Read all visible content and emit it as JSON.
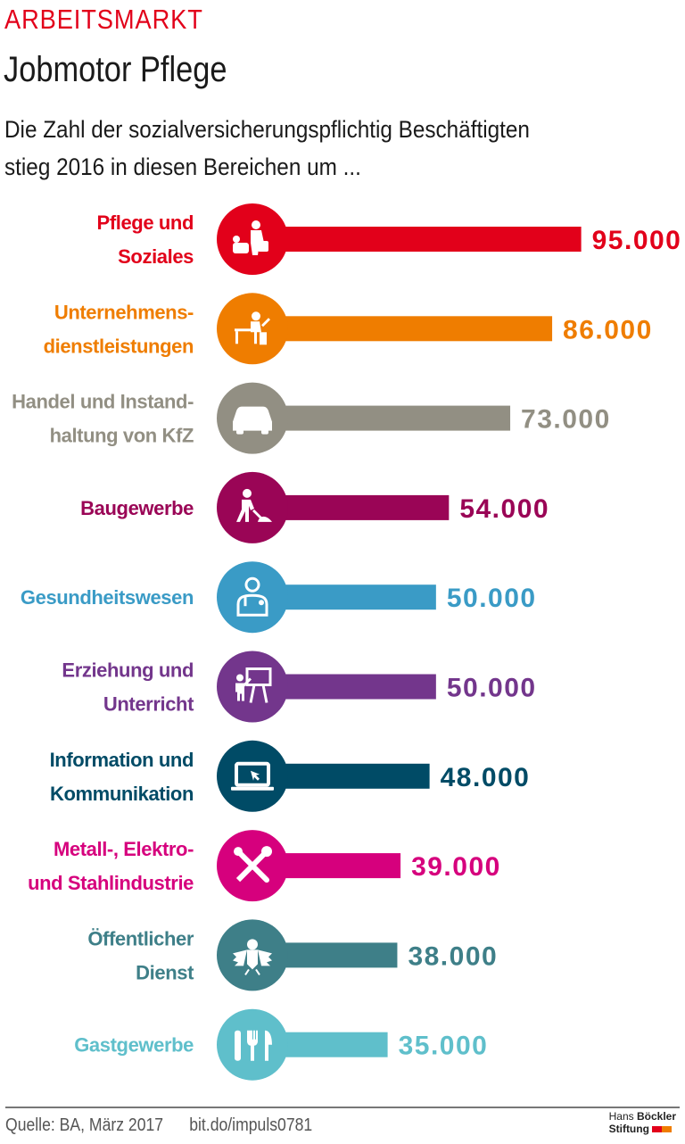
{
  "header": {
    "kicker": "ARBEITSMARKT",
    "title": "Jobmotor Pflege",
    "subtitle_line1": "Die Zahl der sozialversicherungspflichtig Beschäftigten",
    "subtitle_line2": "stieg 2016 in diesen Bereichen um ..."
  },
  "chart_data": {
    "type": "bar",
    "orientation": "horizontal",
    "grid": false,
    "xlim": [
      0,
      95000
    ],
    "categories": [
      {
        "label": [
          "Pflege und",
          "Soziales"
        ],
        "value": 95000,
        "value_label": "95.000",
        "color": "#e2001a",
        "icon": "caregiver-icon"
      },
      {
        "label": [
          "Unternehmens-",
          "dienstleistungen"
        ],
        "value": 86000,
        "value_label": "86.000",
        "color": "#ef7d00",
        "icon": "office-worker-icon"
      },
      {
        "label": [
          "Handel und Instand-",
          "haltung von KfZ"
        ],
        "value": 73000,
        "value_label": "73.000",
        "color": "#928f83",
        "icon": "car-icon"
      },
      {
        "label": [
          "Baugewerbe"
        ],
        "value": 54000,
        "value_label": "54.000",
        "color": "#9a0556",
        "icon": "construction-worker-icon"
      },
      {
        "label": [
          "Gesundheitswesen"
        ],
        "value": 50000,
        "value_label": "50.000",
        "color": "#3a9bc6",
        "icon": "doctor-icon"
      },
      {
        "label": [
          "Erziehung und",
          "Unterricht"
        ],
        "value": 50000,
        "value_label": "50.000",
        "color": "#73368c",
        "icon": "teacher-icon"
      },
      {
        "label": [
          "Information und",
          "Kommunikation"
        ],
        "value": 48000,
        "value_label": "48.000",
        "color": "#004b66",
        "icon": "laptop-icon"
      },
      {
        "label": [
          "Metall-, Elektro-",
          "und Stahlindustrie"
        ],
        "value": 39000,
        "value_label": "39.000",
        "color": "#d6007d",
        "icon": "tools-icon"
      },
      {
        "label": [
          "Öffentlicher",
          "Dienst"
        ],
        "value": 38000,
        "value_label": "38.000",
        "color": "#3e7f88",
        "icon": "federal-eagle-icon"
      },
      {
        "label": [
          "Gastgewerbe"
        ],
        "value": 35000,
        "value_label": "35.000",
        "color": "#5fbfcb",
        "icon": "cutlery-icon"
      }
    ]
  },
  "footer": {
    "source": "Quelle: BA, März 2017",
    "link": "bit.do/impuls0781",
    "logo_line1_a": "Hans",
    "logo_line1_b": "Böckler",
    "logo_line2": "Stiftung",
    "logo_colors": [
      "#e2001a",
      "#ef7d00"
    ]
  }
}
